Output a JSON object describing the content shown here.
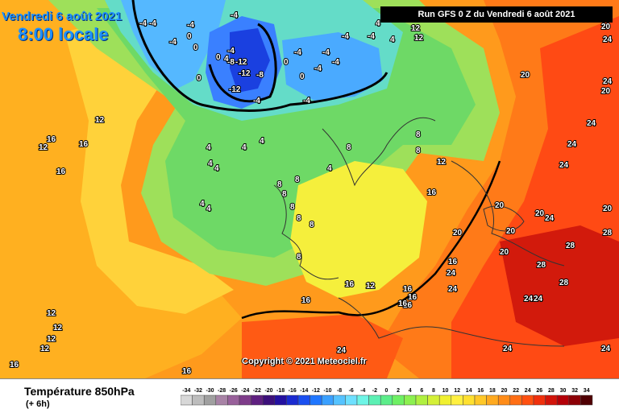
{
  "header": {
    "date": "Vendredi 6 août 2021",
    "time": "8:00 locale",
    "run": "Run GFS 0 Z du Vendredi 6 août 2021"
  },
  "copyright": "Copyright © 2021 Meteociel.fr",
  "legend": {
    "variable": "Température 850hPa",
    "step": "(+ 6h)",
    "scale_values": [
      -34,
      -32,
      -30,
      -28,
      -26,
      -24,
      -22,
      -20,
      -18,
      -16,
      -14,
      -12,
      -10,
      -8,
      -6,
      -4,
      -2,
      0,
      2,
      4,
      6,
      8,
      10,
      12,
      14,
      16,
      18,
      20,
      22,
      24,
      26,
      28,
      30,
      32,
      34
    ],
    "scale_colors": [
      "#d8d8d8",
      "#bdbdbd",
      "#a0a0a0",
      "#a883a6",
      "#98609a",
      "#7e3c8a",
      "#5f1f80",
      "#3c0f7a",
      "#2310a0",
      "#1a2ad0",
      "#1a4ff0",
      "#1f76ff",
      "#3aa0ff",
      "#55c3ff",
      "#6ee0ff",
      "#6ef5e6",
      "#5cf0b4",
      "#5ced8a",
      "#6ef064",
      "#8cf050",
      "#b0f040",
      "#d4f038",
      "#f0f030",
      "#fff040",
      "#ffe030",
      "#ffc828",
      "#ffaa20",
      "#ff8c18",
      "#ff6e14",
      "#ff5010",
      "#f0300c",
      "#d2140a",
      "#b40008",
      "#8c0006",
      "#500004"
    ]
  },
  "isotherm_labels": {
    "north_atlantic": [
      "-4",
      "-4",
      "0",
      "0",
      "0",
      "0",
      "-4",
      "-4",
      "-4",
      "-4",
      "0",
      "0"
    ],
    "norwegian_sea_cold_core": [
      "-8",
      "-12",
      "-12",
      "-8",
      "-12",
      "-4",
      "-4"
    ],
    "barents": [
      "-4",
      "-4",
      "-4",
      "-4",
      "-4",
      "-4",
      "4",
      "4"
    ],
    "atlantic_west": [
      "12",
      "16",
      "16",
      "16",
      "12",
      "4",
      "4",
      "4",
      "4",
      "4",
      "4",
      "4"
    ],
    "western_europe": [
      "8",
      "8",
      "8",
      "8",
      "8",
      "8",
      "8",
      "4",
      "8",
      "8",
      "12",
      "12",
      "16"
    ],
    "eastern_europe": [
      "4",
      "8",
      "12",
      "16",
      "20",
      "20",
      "20",
      "20",
      "20",
      "24"
    ],
    "russia_east": [
      "12",
      "20",
      "20",
      "24",
      "24",
      "24",
      "24",
      "24"
    ],
    "south_east": [
      "20",
      "20",
      "24",
      "24",
      "24",
      "24",
      "28",
      "28",
      "28",
      "28",
      "24"
    ],
    "mediterranean": [
      "16",
      "16",
      "16",
      "16",
      "24",
      "24",
      "16"
    ],
    "south_atlantic": [
      "12",
      "12",
      "12",
      "12",
      "16",
      "16",
      "16"
    ]
  }
}
